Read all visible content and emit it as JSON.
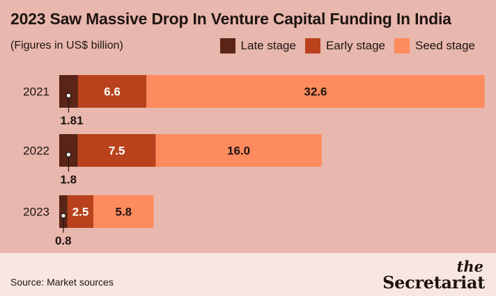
{
  "title": "2023 Saw Massive Drop In Venture Capital Funding In India",
  "subtitle": "(Figures in US$ billion)",
  "colors": {
    "late": "#5a2416",
    "early": "#b9421c",
    "seed": "#fd8b5d",
    "background": "#e8b7ad",
    "footer": "#f7e6e1"
  },
  "chart_data": {
    "type": "bar",
    "orientation": "horizontal",
    "stacked": true,
    "categories": [
      "2021",
      "2022",
      "2023"
    ],
    "series": [
      {
        "name": "Late stage",
        "values": [
          1.81,
          1.8,
          0.8
        ],
        "labels": [
          "1.81",
          "1.8",
          "0.8"
        ]
      },
      {
        "name": "Early stage",
        "values": [
          6.6,
          7.5,
          2.5
        ],
        "labels": [
          "6.6",
          "7.5",
          "2.5"
        ]
      },
      {
        "name": "Seed stage",
        "values": [
          32.6,
          16.0,
          5.8
        ],
        "labels": [
          "32.6",
          "16.0",
          "5.8"
        ]
      }
    ],
    "legend": "top-right",
    "grid": false
  },
  "footer": {
    "source": "Source: Market sources",
    "logo_the": "the",
    "logo_name": "Secretariat"
  }
}
